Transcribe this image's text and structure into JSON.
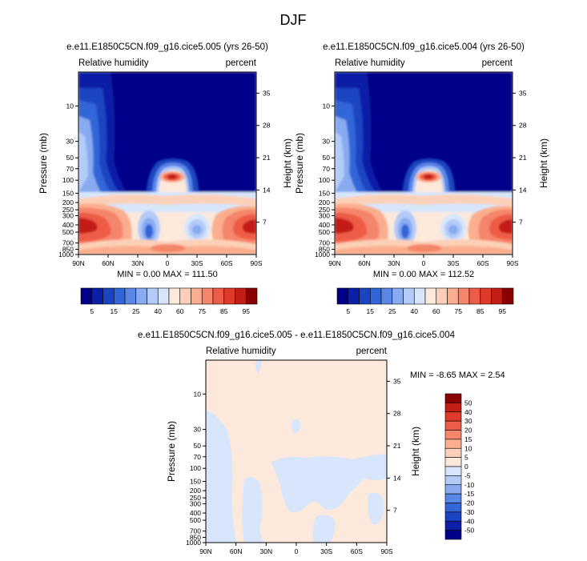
{
  "figure_title": "DJF",
  "colors": {
    "rh": [
      "#00008b",
      "#0d1fa6",
      "#1b44c2",
      "#3165d8",
      "#5a86e6",
      "#88aaf0",
      "#b3cbf7",
      "#d7e6fb",
      "#fde9dc",
      "#fcd0b8",
      "#faae8e",
      "#f5856b",
      "#ee5c47",
      "#df3a29",
      "#c31e16",
      "#8b0000"
    ],
    "diff": [
      "#00008b",
      "#0d1fa6",
      "#1b44c2",
      "#3165d8",
      "#5a86e6",
      "#88aaf0",
      "#b3cbf7",
      "#d7e6fb",
      "#fde9dc",
      "#fcd0b8",
      "#faae8e",
      "#f5856b",
      "#ee5c47",
      "#df3a29",
      "#c31e16",
      "#8b0000"
    ]
  },
  "chart_data": [
    {
      "type": "heatmap",
      "title": "e.e11.E1850C5CN.f09_g16.cice5.005 (yrs 26-50)",
      "left_label": "Relative humidity",
      "right_label": "percent",
      "xlabel": "",
      "ylabel": "Pressure (mb)",
      "ylabel_right": "Height (km)",
      "x_ticks": [
        "90N",
        "60N",
        "30N",
        "0",
        "30S",
        "60S",
        "90S"
      ],
      "y_ticks": [
        "10",
        "30",
        "50",
        "70",
        "100",
        "150",
        "200",
        "250",
        "300",
        "400",
        "500",
        "700",
        "850",
        "1000"
      ],
      "y_ticks_right": [
        "35",
        "28",
        "21",
        "14",
        "7"
      ],
      "stats": "MIN =   0.00  MAX = 111.50",
      "min": 0.0,
      "max": 111.5,
      "colorbar_labels": [
        "5",
        "15",
        "25",
        "40",
        "60",
        "75",
        "85",
        "95"
      ]
    },
    {
      "type": "heatmap",
      "title": "e.e11.E1850C5CN.f09_g16.cice5.004 (yrs 26-50)",
      "left_label": "Relative humidity",
      "right_label": "percent",
      "xlabel": "",
      "ylabel": "Pressure (mb)",
      "ylabel_right": "Height (km)",
      "x_ticks": [
        "90N",
        "60N",
        "30N",
        "0",
        "30S",
        "60S",
        "90S"
      ],
      "y_ticks": [
        "10",
        "30",
        "50",
        "70",
        "100",
        "150",
        "200",
        "250",
        "300",
        "400",
        "500",
        "700",
        "850",
        "1000"
      ],
      "y_ticks_right": [
        "35",
        "28",
        "21",
        "14",
        "7"
      ],
      "stats": "MIN =   0.00  MAX = 112.52",
      "min": 0.0,
      "max": 112.52,
      "colorbar_labels": [
        "5",
        "15",
        "25",
        "40",
        "60",
        "75",
        "85",
        "95"
      ]
    },
    {
      "type": "heatmap",
      "title": "e.e11.E1850C5CN.f09_g16.cice5.005 - e.e11.E1850C5CN.f09_g16.cice5.004",
      "left_label": "Relative humidity",
      "right_label": "percent",
      "xlabel": "",
      "ylabel": "Pressure (mb)",
      "ylabel_right": "Height (km)",
      "x_ticks": [
        "90N",
        "60N",
        "30N",
        "0",
        "30S",
        "60S",
        "90S"
      ],
      "y_ticks": [
        "10",
        "30",
        "50",
        "70",
        "100",
        "150",
        "200",
        "250",
        "300",
        "400",
        "500",
        "700",
        "850",
        "1000"
      ],
      "y_ticks_right": [
        "35",
        "28",
        "21",
        "14",
        "7"
      ],
      "stats": "MIN =  -8.65  MAX =   2.54",
      "min": -8.65,
      "max": 2.54,
      "colorbar_labels": [
        "50",
        "40",
        "30",
        "20",
        "15",
        "10",
        "5",
        "0",
        "-5",
        "-10",
        "-15",
        "-20",
        "-30",
        "-40",
        "-50"
      ]
    }
  ]
}
